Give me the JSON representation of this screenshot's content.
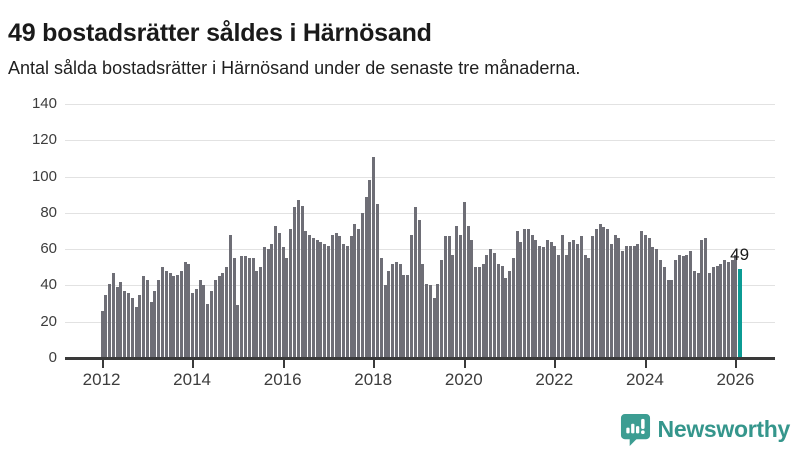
{
  "header": {
    "title": "49 bostadsrätter såldes i Härnösand",
    "subtitle": "Antal sålda bostadsrätter i Härnösand under de senaste tre månaderna."
  },
  "chart_data": {
    "type": "bar",
    "title": "49 bostadsrätter såldes i Härnösand",
    "description": "Antal sålda bostadsrätter i Härnösand under de senaste tre månaderna.",
    "x_start_month": "2012-01",
    "x_end_month": "2026-02",
    "x_tick_labels": [
      "2012",
      "2014",
      "2016",
      "2018",
      "2020",
      "2022",
      "2024",
      "2026"
    ],
    "y_ticks": [
      0,
      20,
      40,
      60,
      80,
      100,
      120,
      140
    ],
    "ylim": [
      0,
      140
    ],
    "grid": true,
    "values": [
      26,
      35,
      41,
      47,
      39,
      42,
      37,
      36,
      33,
      28,
      35,
      45,
      43,
      31,
      37,
      43,
      50,
      48,
      47,
      45,
      46,
      48,
      53,
      52,
      36,
      38,
      43,
      40,
      30,
      37,
      43,
      45,
      47,
      50,
      68,
      55,
      29,
      56,
      56,
      55,
      55,
      48,
      50,
      61,
      60,
      63,
      73,
      69,
      61,
      55,
      71,
      83,
      87,
      84,
      70,
      68,
      66,
      65,
      64,
      63,
      62,
      68,
      69,
      67,
      63,
      62,
      67,
      74,
      71,
      80,
      89,
      98,
      111,
      85,
      55,
      40,
      48,
      52,
      53,
      52,
      46,
      46,
      68,
      83,
      76,
      52,
      41,
      40,
      33,
      41,
      54,
      67,
      67,
      57,
      73,
      68,
      86,
      73,
      65,
      50,
      50,
      52,
      57,
      60,
      58,
      52,
      51,
      44,
      48,
      55,
      70,
      64,
      71,
      71,
      68,
      65,
      62,
      61,
      65,
      64,
      62,
      57,
      68,
      57,
      64,
      65,
      63,
      67,
      57,
      55,
      67,
      71,
      74,
      72,
      71,
      63,
      68,
      66,
      59,
      62,
      62,
      62,
      63,
      70,
      68,
      66,
      61,
      60,
      54,
      50,
      43,
      43,
      54,
      57,
      56,
      57,
      59,
      48,
      47,
      65,
      66,
      47,
      50,
      51,
      52,
      54,
      53,
      54,
      57,
      49
    ],
    "highlight_last": true,
    "last_value_label": "49",
    "colors": {
      "bar": "#6e6e76",
      "highlight": "#0b9b94",
      "grid": "#e2e2e2",
      "axis": "#3a3a3a",
      "tick_text": "#3d3d3d",
      "label_text": "#1a1a1a"
    }
  },
  "footer": {
    "brand": "Newsworthy",
    "brand_color": "#35968c",
    "logo_icon": "bar-chart-speech-bubble-icon"
  }
}
